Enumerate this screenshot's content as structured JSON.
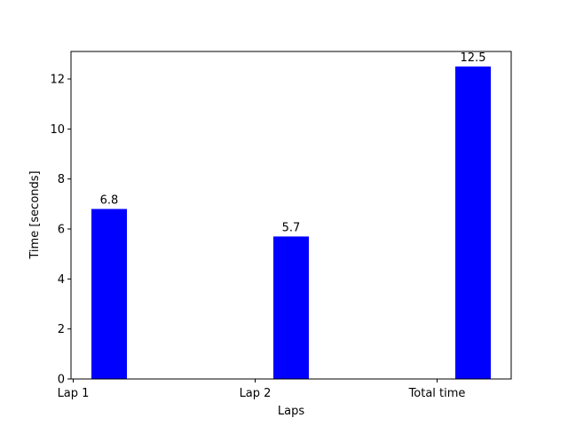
{
  "chart_data": {
    "type": "bar",
    "categories": [
      "Lap 1",
      "Lap 2",
      "Total time"
    ],
    "values": [
      6.8,
      5.7,
      12.5
    ],
    "data_labels": [
      "6.8",
      "5.7",
      "12.5"
    ],
    "title": "",
    "xlabel": "Laps",
    "ylabel": "Time [seconds]",
    "ylim": [
      0,
      13.1
    ],
    "yticks": [
      0,
      2,
      4,
      6,
      8,
      10,
      12
    ],
    "ytick_labels": [
      "0",
      "2",
      "4",
      "6",
      "8",
      "10",
      "12"
    ],
    "bar_color": "#0000ff",
    "grid": false,
    "legend": "none"
  }
}
